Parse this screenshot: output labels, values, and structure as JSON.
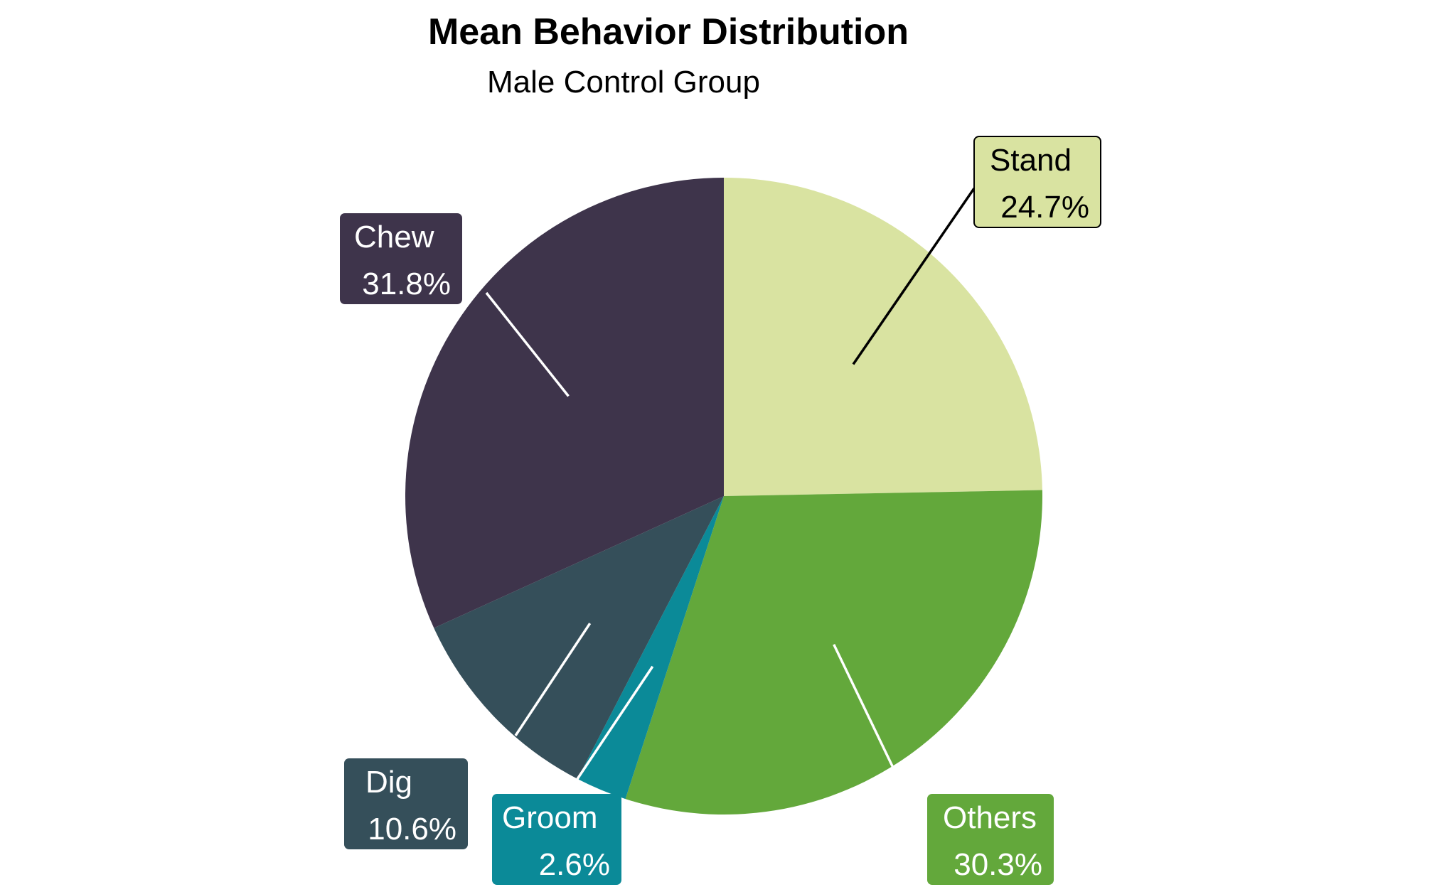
{
  "chart_data": {
    "type": "pie",
    "title": "Mean Behavior Distribution",
    "subtitle": "Male Control Group",
    "start_angle_deg": 0,
    "direction": "clockwise",
    "slices": [
      {
        "label": "Stand",
        "value": 24.7,
        "display": "24.7%",
        "color": "#d9e3a1",
        "text_color": "#000000"
      },
      {
        "label": "Others",
        "value": 30.3,
        "display": "30.3%",
        "color": "#63a83b",
        "text_color": "#ffffff"
      },
      {
        "label": "Groom",
        "value": 2.6,
        "display": "2.6%",
        "color": "#0b8a98",
        "text_color": "#ffffff"
      },
      {
        "label": "Dig",
        "value": 10.6,
        "display": "10.6%",
        "color": "#354f5a",
        "text_color": "#ffffff"
      },
      {
        "label": "Chew",
        "value": 31.8,
        "display": "31.8%",
        "color": "#3e344b",
        "text_color": "#ffffff"
      }
    ]
  }
}
